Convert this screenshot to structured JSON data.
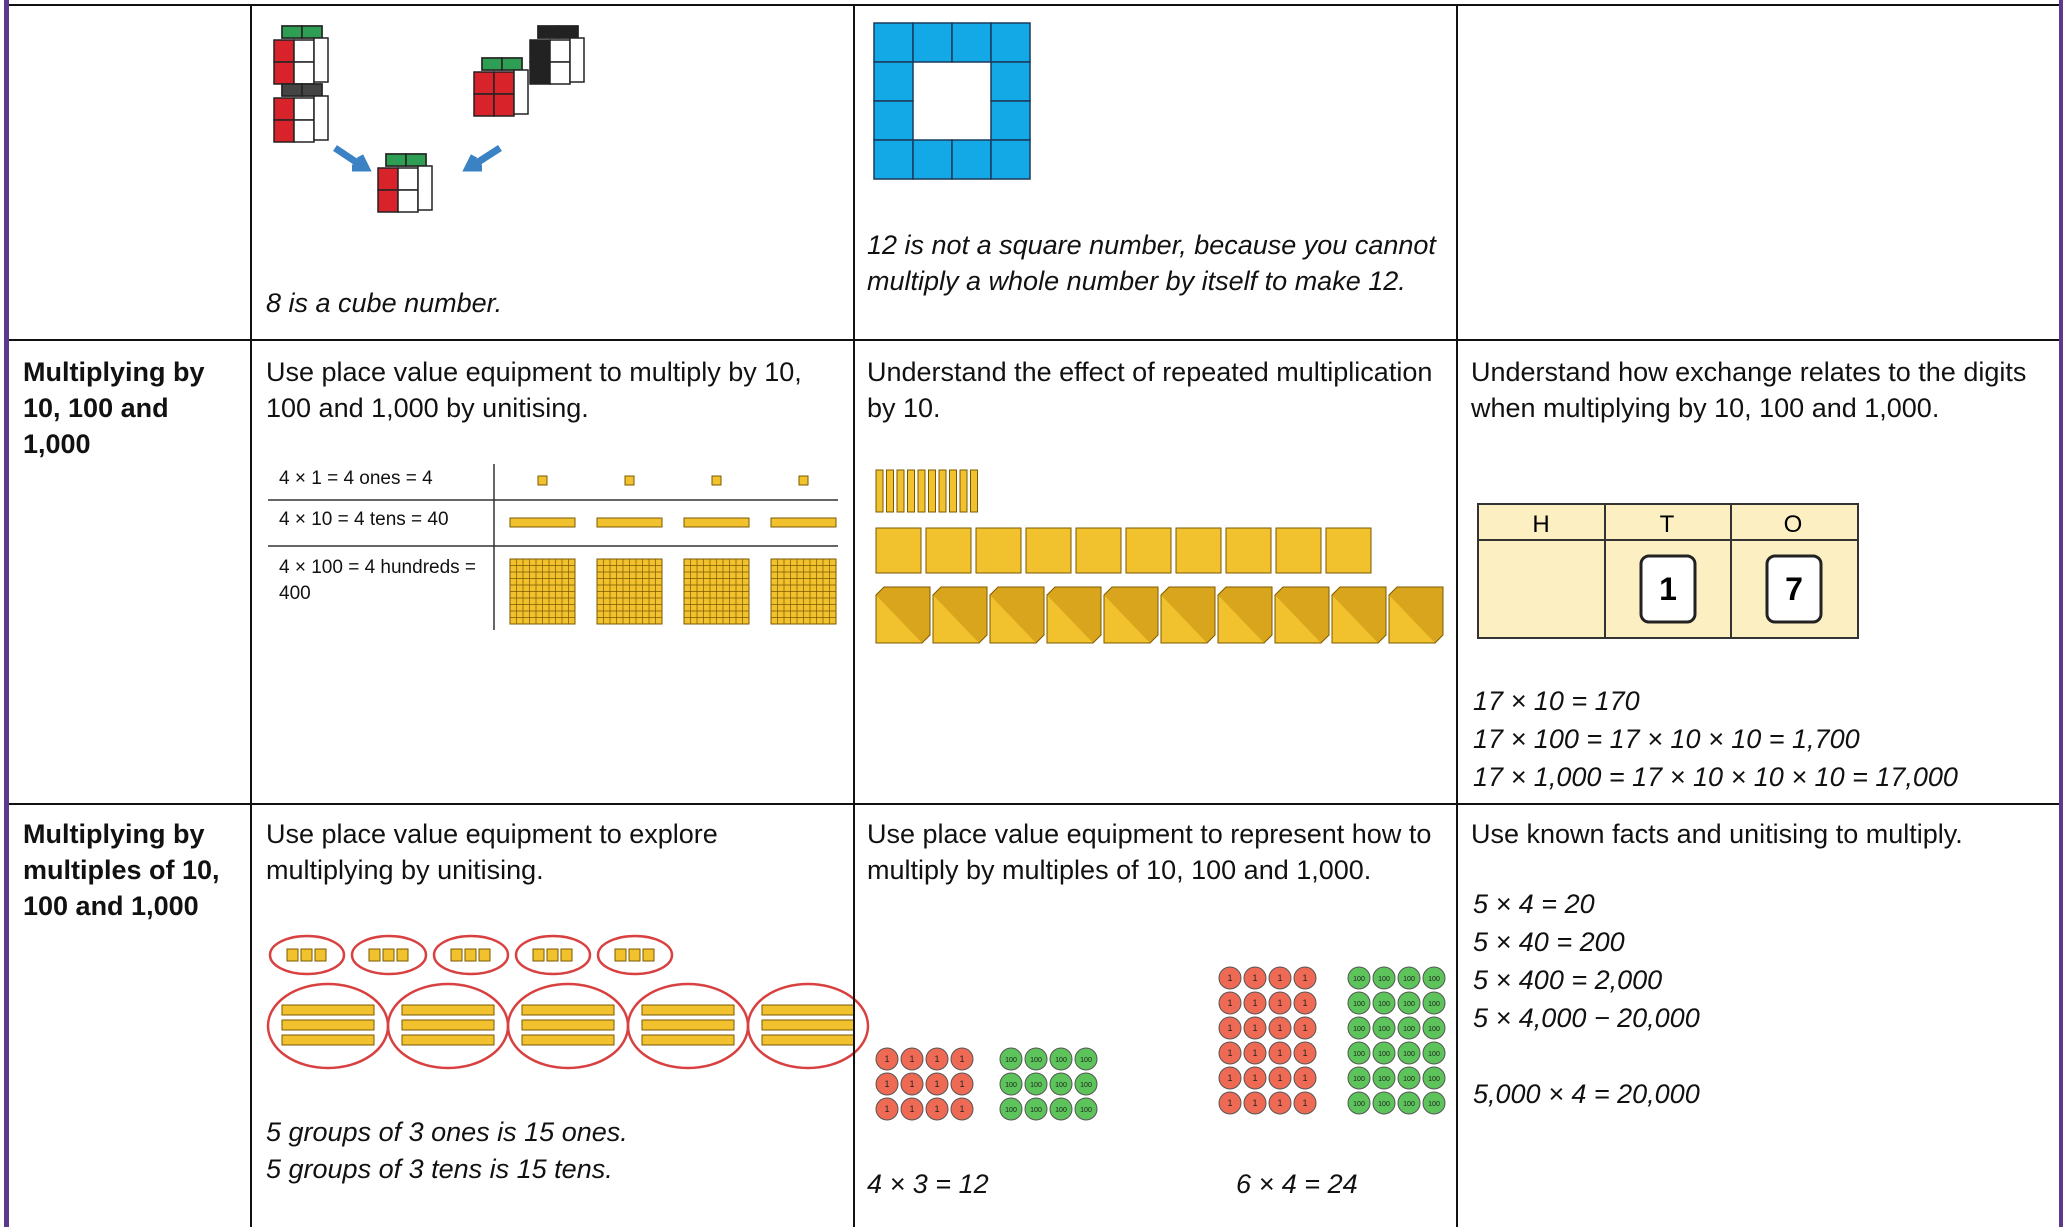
{
  "rows": [
    {
      "cube_caption": "8 is a cube number.",
      "square_caption": "12 is not a square number, because you cannot multiply a whole number by itself to make 12."
    },
    {
      "heading": "Multiplying by 10, 100 and 1,000",
      "col1_text": "Use place value equipment to multiply by 10, 100 and 1,000 by unitising.",
      "col1_table": [
        "4 × 1 = 4 ones = 4",
        "4 × 10 = 4 tens = 40",
        "4 × 100 = 4 hundreds = 400"
      ],
      "col2_text": "Understand the effect of repeated multiplication by 10.",
      "col3_text": "Understand how exchange relates to the digits when multiplying by 10, 100 and 1,000.",
      "place_value_headers": [
        "H",
        "T",
        "O"
      ],
      "place_value_digits": [
        "1",
        "7"
      ],
      "col3_equations": [
        "17 × 10 = 170",
        "17 × 100 = 17 × 10 × 10 = 1,700",
        "17 × 1,000 = 17 × 10 × 10 × 10 = 17,000"
      ]
    },
    {
      "heading": "Multiplying by multiples of 10, 100 and 1,000",
      "col1_text": "Use place value equipment to explore multiplying by unitising.",
      "col1_captions": [
        "5 groups of 3 ones is 15 ones.",
        "5 groups of 3 tens is 15 tens."
      ],
      "col2_text": "Use place value equipment to represent how to multiply by multiples of 10, 100 and 1,000.",
      "counter_labels": [
        "1",
        "100"
      ],
      "col2_equations": [
        "4 × 3 = 12",
        "6 × 4 = 24"
      ],
      "col3_text": "Use known facts and unitising to multiply.",
      "col3_equations": [
        "5 × 4 = 20",
        "5 × 40 = 200",
        "5 × 400 = 2,000",
        "5 × 4,000 − 20,000",
        "5,000 × 4 = 20,000"
      ]
    }
  ]
}
